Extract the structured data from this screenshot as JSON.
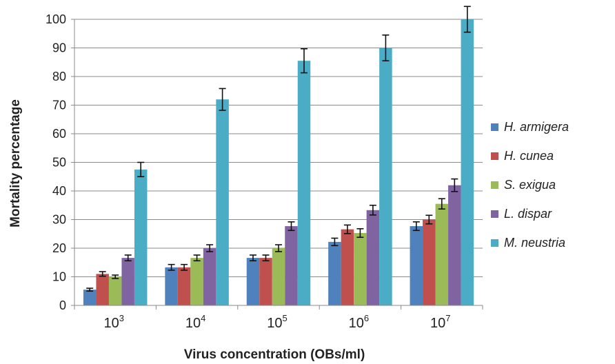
{
  "chart_data": {
    "type": "bar",
    "xlabel": "Virus concentration (OBs/ml)",
    "ylabel": "Mortality percentage",
    "ylim": [
      0,
      100
    ],
    "yticks": [
      0,
      10,
      20,
      30,
      40,
      50,
      60,
      70,
      80,
      90,
      100
    ],
    "grid": true,
    "legend_position": "right",
    "categories": [
      {
        "base": "10",
        "exp": "3"
      },
      {
        "base": "10",
        "exp": "4"
      },
      {
        "base": "10",
        "exp": "5"
      },
      {
        "base": "10",
        "exp": "6"
      },
      {
        "base": "10",
        "exp": "7"
      }
    ],
    "series": [
      {
        "name": "H. armigera",
        "color": "#4f81bd",
        "values": [
          5.5,
          13.3,
          16.6,
          22.2,
          27.7
        ],
        "errors": [
          0.5,
          1.0,
          1.0,
          1.3,
          1.5
        ]
      },
      {
        "name": "H. cunea",
        "color": "#c0504d",
        "values": [
          11.0,
          13.3,
          16.6,
          26.6,
          30.0
        ],
        "errors": [
          0.8,
          1.0,
          1.0,
          1.5,
          1.5
        ]
      },
      {
        "name": "S. exigua",
        "color": "#9bbb59",
        "values": [
          10.0,
          16.6,
          20.0,
          25.3,
          35.5
        ],
        "errors": [
          0.6,
          1.0,
          1.2,
          1.5,
          1.8
        ]
      },
      {
        "name": "L. dispar",
        "color": "#8064a2",
        "values": [
          16.6,
          20.0,
          27.7,
          33.3,
          42.0
        ],
        "errors": [
          1.0,
          1.2,
          1.5,
          1.7,
          2.2
        ]
      },
      {
        "name": "M. neustria",
        "color": "#4bacc6",
        "values": [
          47.5,
          72.0,
          85.5,
          90.0,
          100.0
        ],
        "errors": [
          2.5,
          3.8,
          4.2,
          4.5,
          4.5
        ]
      }
    ]
  }
}
